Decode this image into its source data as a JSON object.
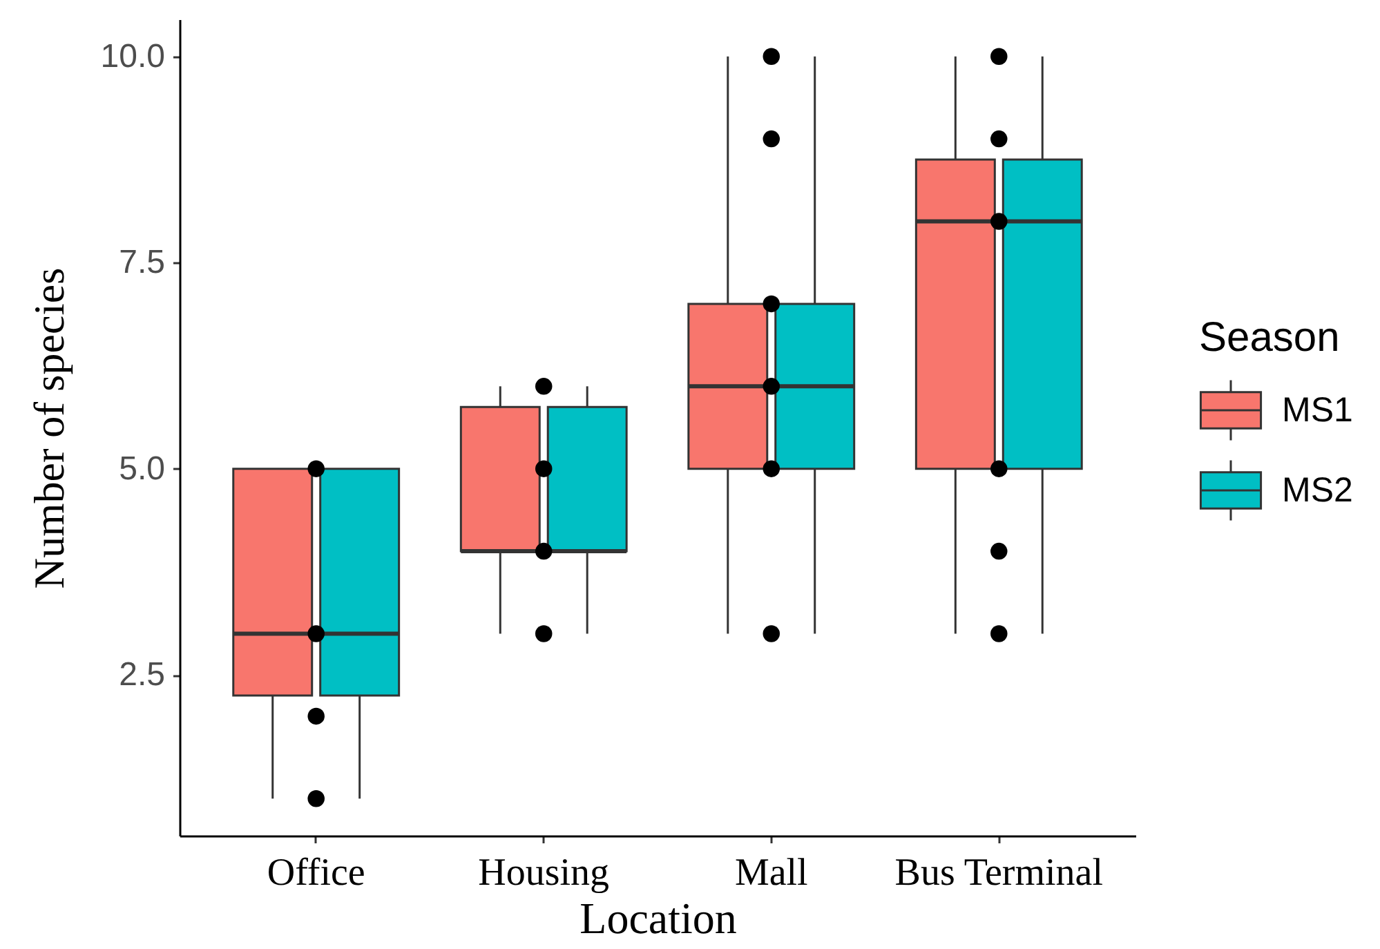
{
  "chart_data": {
    "type": "box",
    "xlabel": "Location",
    "ylabel": "Number of species",
    "legend_title": "Season",
    "legend": "right",
    "grid": false,
    "categories": [
      "Office",
      "Housing",
      "Mall",
      "Bus Terminal"
    ],
    "ylim": [
      0.55,
      10.45
    ],
    "yticks": [
      2.5,
      {
        "value": 5,
        "label": "5.0"
      },
      7.5,
      {
        "value": 10,
        "label": "10.0"
      }
    ],
    "series": [
      {
        "name": "MS1",
        "color": "#f8766d",
        "boxes": [
          {
            "low": 1,
            "q1": 2.25,
            "median": 3,
            "q3": 5,
            "high": 5
          },
          {
            "low": 3,
            "q1": 4,
            "median": 4,
            "q3": 5.75,
            "high": 6
          },
          {
            "low": 3,
            "q1": 5,
            "median": 6,
            "q3": 7,
            "high": 10
          },
          {
            "low": 3,
            "q1": 5,
            "median": 8,
            "q3": 8.75,
            "high": 10
          }
        ]
      },
      {
        "name": "MS2",
        "color": "#00bfc4",
        "boxes": [
          {
            "low": 1,
            "q1": 2.25,
            "median": 3,
            "q3": 5,
            "high": 5
          },
          {
            "low": 3,
            "q1": 4,
            "median": 4,
            "q3": 5.75,
            "high": 6
          },
          {
            "low": 3,
            "q1": 5,
            "median": 6,
            "q3": 7,
            "high": 10
          },
          {
            "low": 3,
            "q1": 5,
            "median": 8,
            "q3": 8.75,
            "high": 10
          }
        ]
      },
      {
        "type": "scatter",
        "color": "#000000",
        "marker": "circle",
        "x": [
          "Office",
          "Office",
          "Office",
          "Office",
          "Housing",
          "Housing",
          "Housing",
          "Housing",
          "Mall",
          "Mall",
          "Mall",
          "Mall",
          "Mall",
          "Mall",
          "Bus Terminal",
          "Bus Terminal",
          "Bus Terminal",
          "Bus Terminal",
          "Bus Terminal",
          "Bus Terminal"
        ],
        "values": [
          5,
          3,
          2,
          1,
          6,
          5,
          4,
          3,
          10,
          9,
          7,
          6,
          5,
          3,
          10,
          9,
          8,
          5,
          4,
          3
        ]
      }
    ]
  }
}
